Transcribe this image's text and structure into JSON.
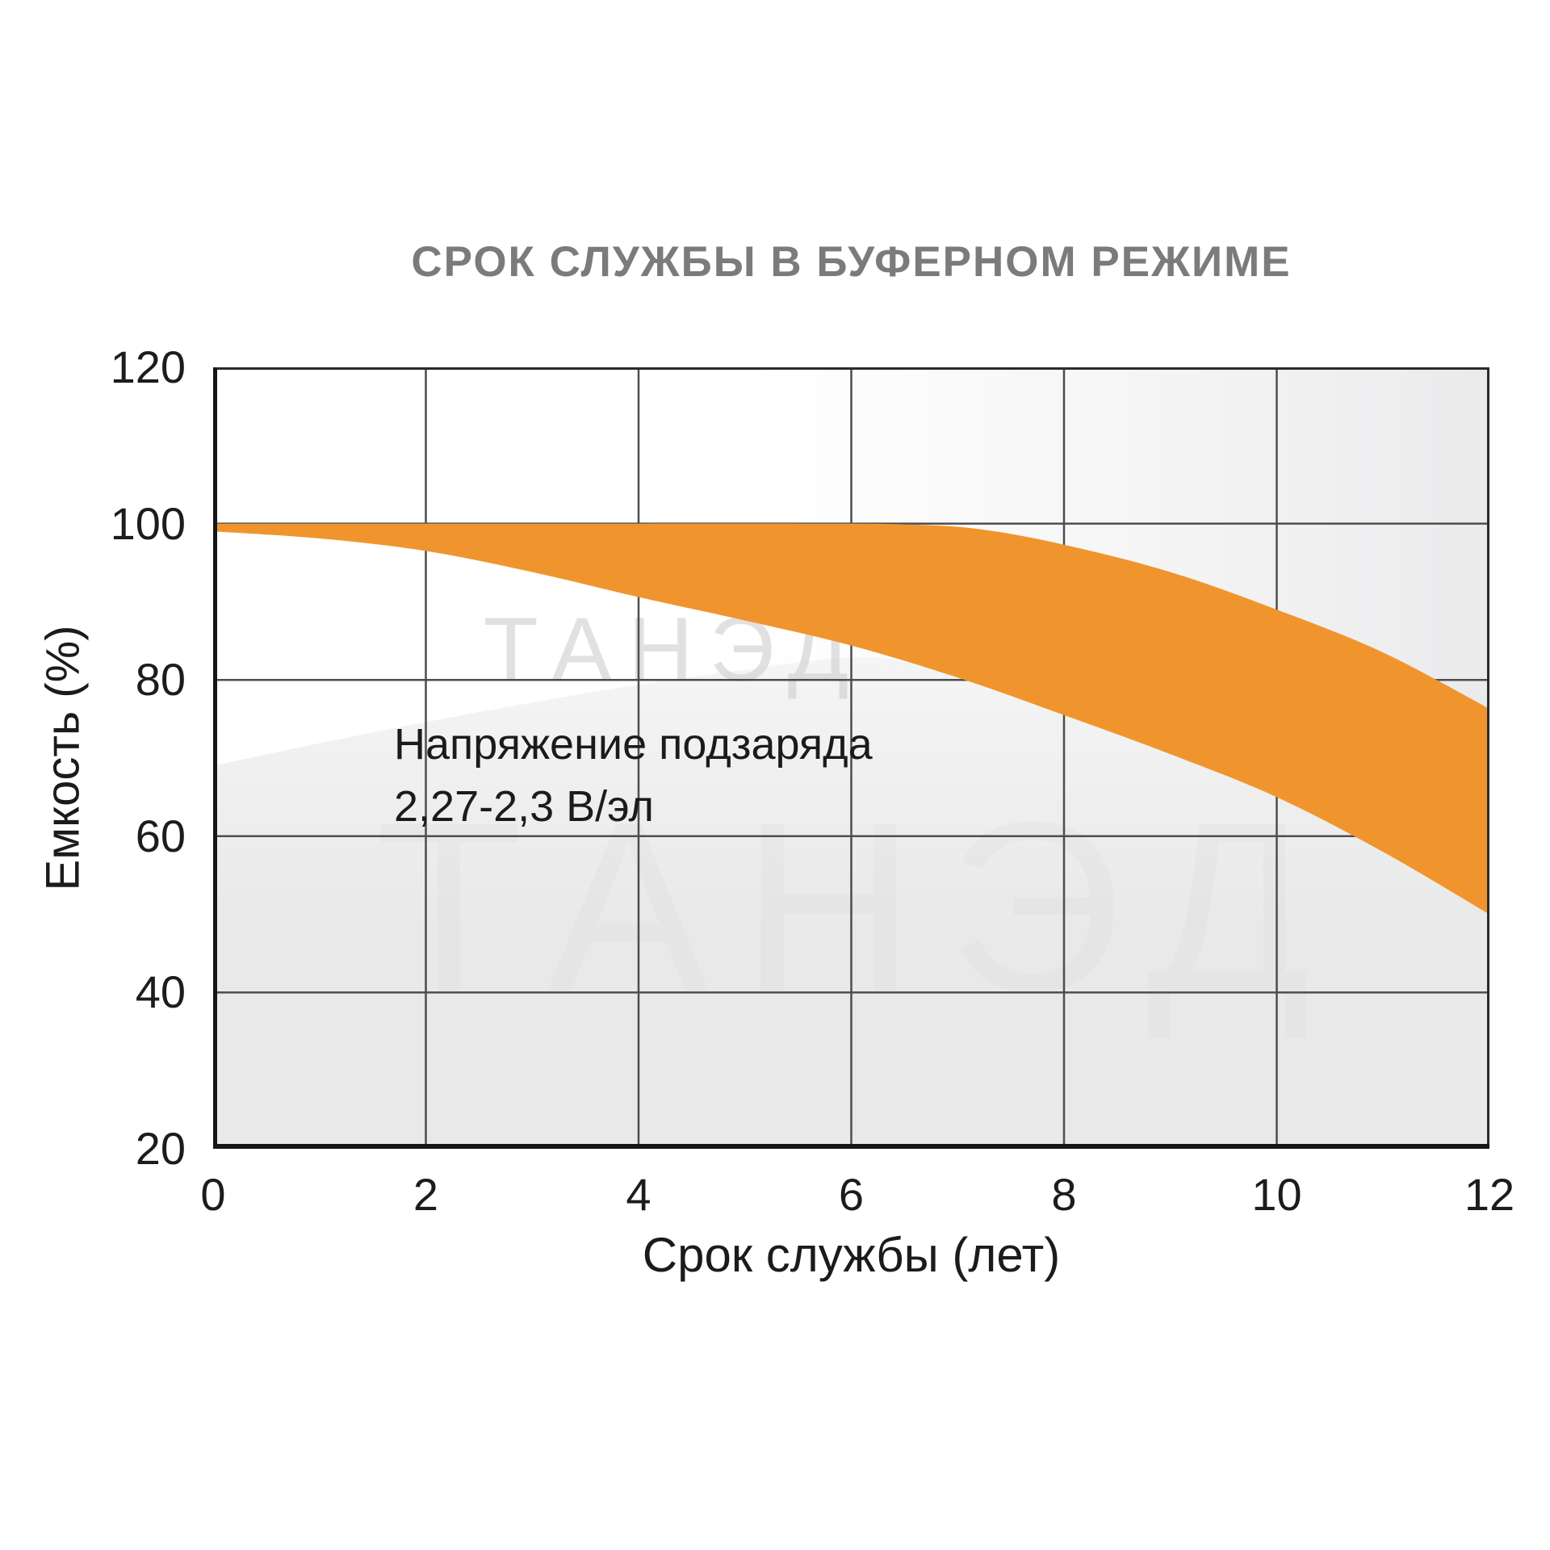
{
  "title": {
    "text": "СРОК СЛУЖБЫ В БУФЕРНОМ РЕЖИМЕ"
  },
  "axes": {
    "x_label": "Срок службы (лет)",
    "y_label": "Емкость (%)"
  },
  "annotation": {
    "line1": "Напряжение подзаряда",
    "line2": "2,27-2,3 В/эл"
  },
  "watermark": "ТАНЭД",
  "chart_data": {
    "type": "area",
    "title": "СРОК СЛУЖБЫ В БУФЕРНОМ РЕЖИМЕ",
    "xlabel": "Срок службы (лет)",
    "ylabel": "Емкость (%)",
    "xlim": [
      0,
      12
    ],
    "ylim": [
      20,
      120
    ],
    "x_ticks": [
      0,
      2,
      4,
      6,
      8,
      10,
      12
    ],
    "y_ticks": [
      120,
      100,
      80,
      60,
      40,
      20
    ],
    "grid": true,
    "legend": "none",
    "annotation_text": "Напряжение подзаряда 2,27-2,3 В/эл",
    "series": [
      {
        "name": "band_upper_edge_capacity_pct",
        "x": [
          0,
          2,
          4,
          5.5,
          6.5,
          7.2,
          8,
          9,
          10,
          11,
          12
        ],
        "y": [
          100,
          100,
          100,
          100,
          99.9,
          99.3,
          97.3,
          93.8,
          89,
          83.5,
          76.3
        ]
      },
      {
        "name": "band_lower_edge_capacity_pct",
        "x": [
          0,
          1,
          2,
          3,
          4,
          5,
          6,
          7,
          8,
          9,
          10,
          11,
          12
        ],
        "y": [
          99,
          98.1,
          96.5,
          93.8,
          90.6,
          87.6,
          84.4,
          80.3,
          75.5,
          70.5,
          65,
          58,
          50
        ]
      },
      {
        "name": "gray_region_upper_edge_pct",
        "x": [
          0,
          1,
          2,
          3,
          4,
          5,
          6,
          6.6
        ],
        "y": [
          69,
          71.9,
          74.6,
          77.1,
          79.4,
          81.3,
          82.9,
          82.1
        ]
      }
    ],
    "colors": {
      "band": "#f0952e",
      "grid": "#4d4d4d",
      "axis": "#161616",
      "box": "#2b2b2b",
      "gray_fill_top": "#f5f5f5",
      "gray_fill_bottom": "#e9e9e9",
      "tick_text": "#1c1c1c",
      "title_text": "#7b7b7b",
      "watermark": "#cfcfcf"
    }
  }
}
